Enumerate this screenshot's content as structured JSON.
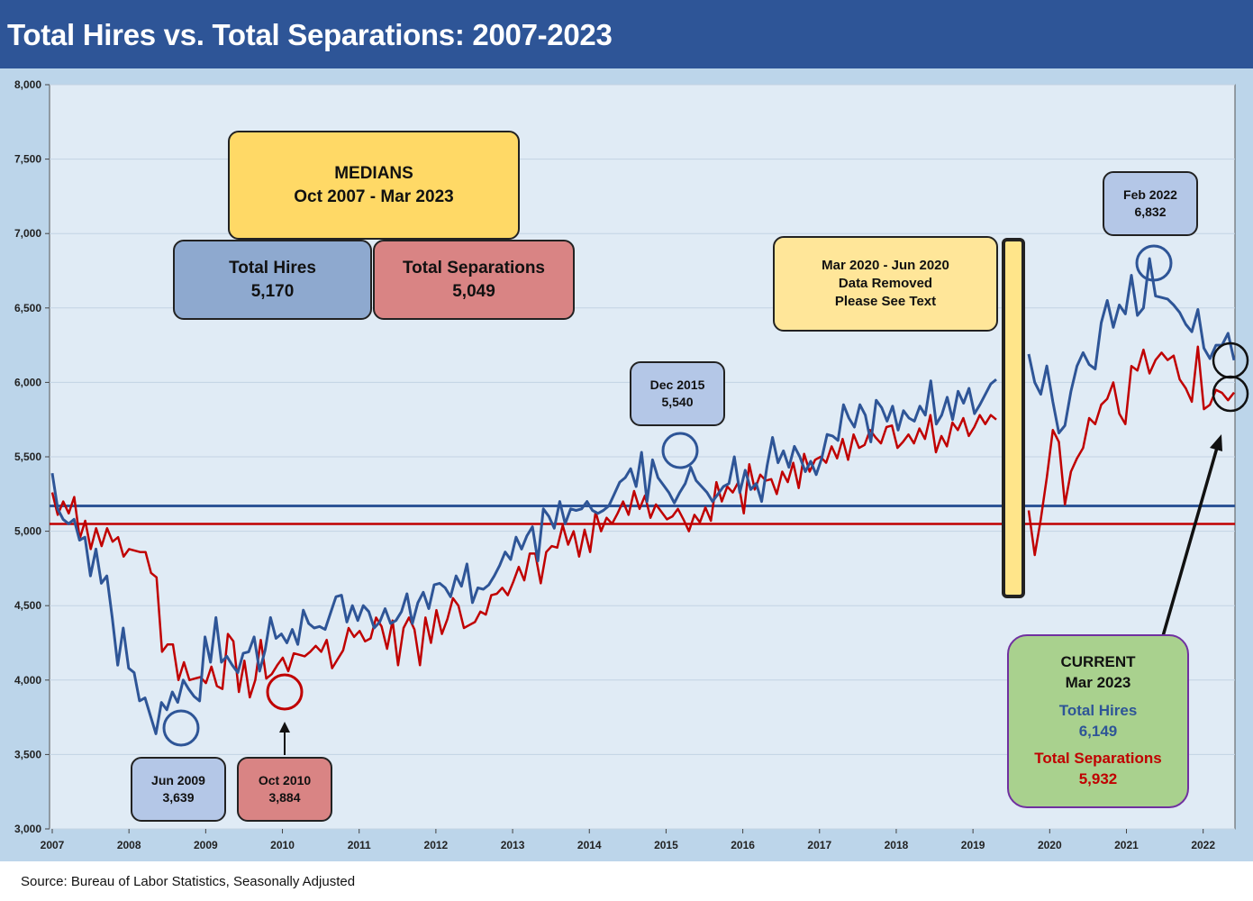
{
  "title": "Total Hires vs. Total Separations: 2007-2023",
  "source": "Source: Bureau of Labor Statistics, Seasonally Adjusted",
  "colors": {
    "hires": "#2e5597",
    "separations": "#c00000",
    "plot_bg": "#e0ebf5",
    "outer_bg": "#bcd5ea"
  },
  "medians_box": {
    "line1": "MEDIANS",
    "line2": "Oct 2007 - Mar 2023"
  },
  "median_hires_box": {
    "label": "Total Hires",
    "value": "5,170"
  },
  "median_seps_box": {
    "label": "Total Separations",
    "value": "5,049"
  },
  "covid_box": {
    "line1": "Mar 2020 - Jun 2020",
    "line2": "Data Removed",
    "line3": "Please See Text"
  },
  "annotations": {
    "jun2009": {
      "date": "Jun 2009",
      "value": "3,639"
    },
    "oct2010": {
      "date": "Oct 2010",
      "value": "3,884"
    },
    "dec2015": {
      "date": "Dec 2015",
      "value": "5,540"
    },
    "feb2022": {
      "date": "Feb 2022",
      "value": "6,832"
    }
  },
  "current_box": {
    "line1": "CURRENT",
    "line2": "Mar 2023",
    "hires_label": "Total Hires",
    "hires_value": "6,149",
    "seps_label": "Total Separations",
    "seps_value": "5,932"
  },
  "chart_data": {
    "type": "line",
    "title": "Total Hires vs. Total Separations: 2007-2023",
    "x_tick_labels": [
      "2007",
      "2008",
      "2009",
      "2010",
      "2011",
      "2012",
      "2013",
      "2014",
      "2015",
      "2016",
      "2017",
      "2018",
      "2019",
      "2020",
      "2021",
      "2022"
    ],
    "y_tick_labels": [
      "3,000",
      "3,500",
      "4,000",
      "4,500",
      "5,000",
      "5,500",
      "6,000",
      "6,500",
      "7,000",
      "7,500",
      "8,000"
    ],
    "ylim": [
      3000,
      8000
    ],
    "grid": true,
    "medians": {
      "hires": 5170,
      "separations": 5049
    },
    "series": [
      {
        "name": "Total Hires",
        "segments": [
          [
            5390,
            5150,
            5080,
            5050,
            5080,
            4940,
            4960,
            4700,
            4880,
            4650,
            4700,
            4420,
            4100,
            4350,
            4080,
            4050,
            3860,
            3880,
            3760,
            3639,
            3850,
            3800,
            3920,
            3850,
            4000,
            3940,
            3890,
            3860,
            4290,
            4120,
            4420,
            4120,
            4160,
            4100,
            4050,
            4180,
            4190,
            4290,
            4060,
            4200,
            4420,
            4280,
            4310,
            4250,
            4340,
            4240,
            4470,
            4380,
            4350,
            4360,
            4340,
            4450,
            4560,
            4570,
            4390,
            4500,
            4400,
            4500,
            4460,
            4350,
            4390,
            4480,
            4380,
            4400,
            4460,
            4580,
            4380,
            4520,
            4590,
            4480,
            4640,
            4650,
            4620,
            4560,
            4700,
            4630,
            4780,
            4520,
            4620,
            4610,
            4640,
            4700,
            4770,
            4860,
            4810,
            4960,
            4880,
            4970,
            5030,
            4800,
            5150,
            5100,
            5020,
            5200,
            5050,
            5150,
            5140,
            5150,
            5200,
            5140,
            5120,
            5140,
            5170,
            5250,
            5330,
            5360,
            5420,
            5300,
            5530,
            5200,
            5480,
            5360,
            5310,
            5260,
            5190,
            5260,
            5320,
            5430,
            5340,
            5300,
            5260,
            5200,
            5250,
            5300,
            5320,
            5500,
            5260,
            5410,
            5280,
            5320,
            5200,
            5440,
            5630,
            5460,
            5540,
            5430,
            5570,
            5500,
            5400,
            5470,
            5380,
            5490,
            5650,
            5640,
            5610,
            5850,
            5760,
            5700,
            5850,
            5780,
            5600,
            5880,
            5830,
            5740,
            5840,
            5680,
            5810,
            5760,
            5740,
            5840,
            5780,
            6010,
            5720,
            5780,
            5900,
            5750,
            5940,
            5860,
            5960,
            5790,
            5850,
            5920,
            5990,
            6020
          ],
          [
            6190,
            6000,
            5920,
            6110,
            5870,
            5660,
            5710,
            5940,
            6110,
            6200,
            6120,
            6090,
            6400,
            6550,
            6370,
            6520,
            6460,
            6720,
            6450,
            6500,
            6832,
            6580,
            6570,
            6560,
            6520,
            6470,
            6390,
            6340,
            6490,
            6230,
            6160,
            6250,
            6250,
            6330,
            6149
          ]
        ]
      },
      {
        "name": "Total Separations",
        "segments": [
          [
            5260,
            5110,
            5200,
            5120,
            5230,
            4950,
            5070,
            4880,
            5020,
            4900,
            5020,
            4930,
            4960,
            4830,
            4880,
            4870,
            4860,
            4860,
            4720,
            4690,
            4190,
            4240,
            4240,
            4000,
            4120,
            4000,
            4010,
            4020,
            3980,
            4090,
            3960,
            3940,
            4310,
            4260,
            3920,
            4130,
            3884,
            4000,
            4270,
            4010,
            4040,
            4100,
            4150,
            4060,
            4180,
            4170,
            4160,
            4190,
            4230,
            4190,
            4270,
            4080,
            4140,
            4200,
            4350,
            4290,
            4330,
            4260,
            4280,
            4420,
            4360,
            4210,
            4400,
            4100,
            4350,
            4420,
            4340,
            4100,
            4420,
            4250,
            4470,
            4310,
            4410,
            4550,
            4500,
            4350,
            4370,
            4390,
            4460,
            4440,
            4570,
            4580,
            4620,
            4570,
            4660,
            4760,
            4670,
            4850,
            4850,
            4650,
            4860,
            4900,
            4890,
            5040,
            4910,
            5000,
            4830,
            5010,
            4860,
            5130,
            5000,
            5090,
            5050,
            5120,
            5200,
            5110,
            5270,
            5150,
            5240,
            5090,
            5180,
            5130,
            5080,
            5100,
            5150,
            5080,
            5000,
            5110,
            5060,
            5160,
            5070,
            5330,
            5200,
            5300,
            5260,
            5330,
            5120,
            5450,
            5280,
            5380,
            5340,
            5350,
            5250,
            5400,
            5330,
            5460,
            5290,
            5520,
            5400,
            5480,
            5500,
            5460,
            5570,
            5490,
            5620,
            5480,
            5650,
            5560,
            5580,
            5680,
            5630,
            5590,
            5700,
            5710,
            5560,
            5600,
            5650,
            5590,
            5690,
            5620,
            5780,
            5530,
            5640,
            5570,
            5730,
            5680,
            5760,
            5640,
            5700,
            5780,
            5720,
            5780,
            5750
          ],
          [
            5140,
            4840,
            5080,
            5360,
            5680,
            5600,
            5180,
            5400,
            5490,
            5560,
            5760,
            5720,
            5850,
            5890,
            6000,
            5790,
            5720,
            6110,
            6080,
            6220,
            6060,
            6150,
            6200,
            6150,
            6180,
            6020,
            5960,
            5870,
            6240,
            5820,
            5850,
            5950,
            5930,
            5880,
            5932
          ]
        ]
      }
    ]
  }
}
